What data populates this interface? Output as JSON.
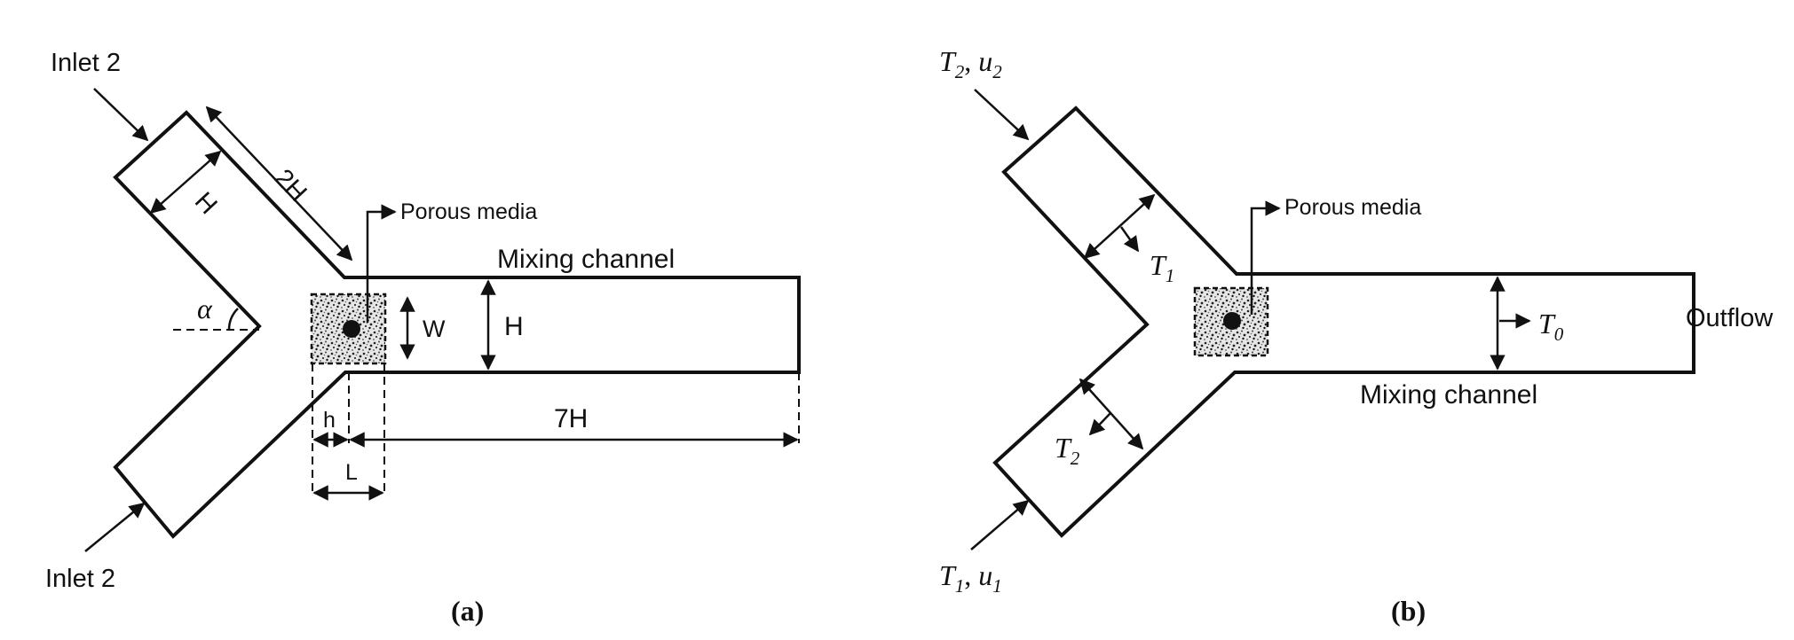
{
  "panel_a": {
    "inlet_top": "Inlet 2",
    "inlet_bottom": "Inlet 2",
    "dim_2h": "2H",
    "dim_h_arm": "H",
    "porous_media": "Porous media",
    "mixing_channel": "Mixing channel",
    "alpha": "α",
    "dim_w": "W",
    "dim_h_channel": "H",
    "dim_small_h": "h",
    "dim_7h": "7H",
    "dim_l": "L",
    "caption": "(a)"
  },
  "panel_b": {
    "t2_top": "T",
    "t2_top_sub": "2",
    "u2_top": "u",
    "u2_top_sub": "2",
    "t1_arm": "T",
    "t1_arm_sub": "1",
    "porous_media": "Porous media",
    "t0": "T",
    "t0_sub": "0",
    "outflow": "Outflow",
    "mixing_channel": "Mixing channel",
    "t2_arm": "T",
    "t2_arm_sub": "2",
    "t1_bottom": "T",
    "t1_bottom_sub": "1",
    "u1_bottom": "u",
    "u1_bottom_sub": "1",
    "caption": "(b)"
  },
  "colors": {
    "ink": "#111111",
    "porous_fill": "#d8d8d8"
  }
}
